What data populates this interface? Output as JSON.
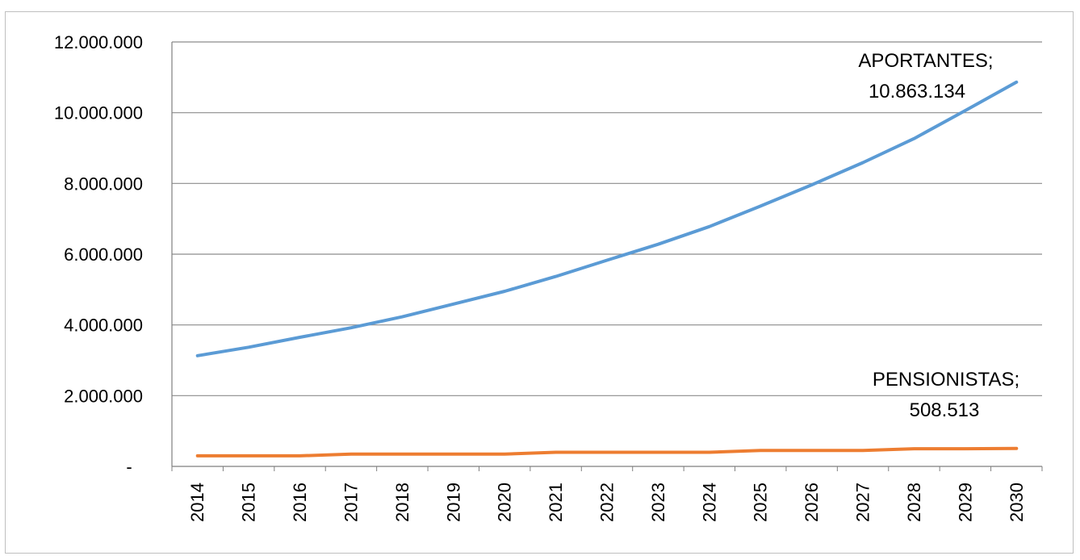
{
  "chart_data": {
    "type": "line",
    "title": "",
    "xlabel": "",
    "ylabel": "",
    "x": [
      "2014",
      "2015",
      "2016",
      "2017",
      "2018",
      "2019",
      "2020",
      "2021",
      "2022",
      "2023",
      "2024",
      "2025",
      "2026",
      "2027",
      "2028",
      "2029",
      "2030"
    ],
    "ylim": [
      0,
      12000000
    ],
    "yticks": [
      {
        "value": 0,
        "label": "-"
      },
      {
        "value": 2000000,
        "label": "2.000.000"
      },
      {
        "value": 4000000,
        "label": "4.000.000"
      },
      {
        "value": 6000000,
        "label": "6.000.000"
      },
      {
        "value": 8000000,
        "label": "8.000.000"
      },
      {
        "value": 10000000,
        "label": "10.000.000"
      },
      {
        "value": 12000000,
        "label": "12.000.000"
      }
    ],
    "grid": true,
    "legend": "none",
    "series": [
      {
        "name": "APORTANTES",
        "color": "#5b9bd5",
        "values": [
          3130000,
          3370000,
          3650000,
          3920000,
          4230000,
          4590000,
          4950000,
          5370000,
          5830000,
          6280000,
          6780000,
          7360000,
          7960000,
          8590000,
          9270000,
          10060000,
          10863134
        ],
        "label_line1": "APORTANTES;",
        "label_line2": "10.863.134"
      },
      {
        "name": "PENSIONISTAS",
        "color": "#ed7d31",
        "values": [
          300000,
          300000,
          300000,
          350000,
          350000,
          350000,
          350000,
          400000,
          400000,
          400000,
          400000,
          450000,
          450000,
          450000,
          500000,
          500000,
          508513
        ],
        "label_line1": "PENSIONISTAS;",
        "label_line2": "508.513"
      }
    ]
  }
}
